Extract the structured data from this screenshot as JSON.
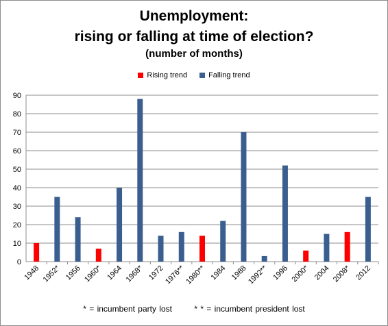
{
  "chart_data": {
    "type": "bar",
    "title": "Unemployment:",
    "title_line2": "rising or falling at time of election?",
    "subtitle": "(number of months)",
    "categories": [
      "1948",
      "1952*",
      "1956",
      "1960*",
      "1964",
      "1968*",
      "1972",
      "1976**",
      "1980**",
      "1984",
      "1988",
      "1992**",
      "1996",
      "2000*",
      "2004",
      "2008*",
      "2012"
    ],
    "values": [
      10,
      35,
      24,
      7,
      40,
      88,
      14,
      16,
      14,
      22,
      70,
      3,
      52,
      6,
      15,
      16,
      35
    ],
    "trend": [
      "rising",
      "falling",
      "falling",
      "rising",
      "falling",
      "falling",
      "falling",
      "falling",
      "rising",
      "falling",
      "falling",
      "falling",
      "falling",
      "rising",
      "falling",
      "rising",
      "falling"
    ],
    "series": [
      {
        "key": "rising",
        "name": "Rising trend",
        "color": "#ff0000"
      },
      {
        "key": "falling",
        "name": "Falling trend",
        "color": "#3a5f8f"
      }
    ],
    "ylim": [
      0,
      90
    ],
    "yticks": [
      0,
      10,
      20,
      30,
      40,
      50,
      60,
      70,
      80,
      90
    ],
    "grid": true,
    "legend_position": "top-center",
    "footnotes": [
      "* = incumbent party lost",
      "* * = incumbent president lost"
    ]
  }
}
